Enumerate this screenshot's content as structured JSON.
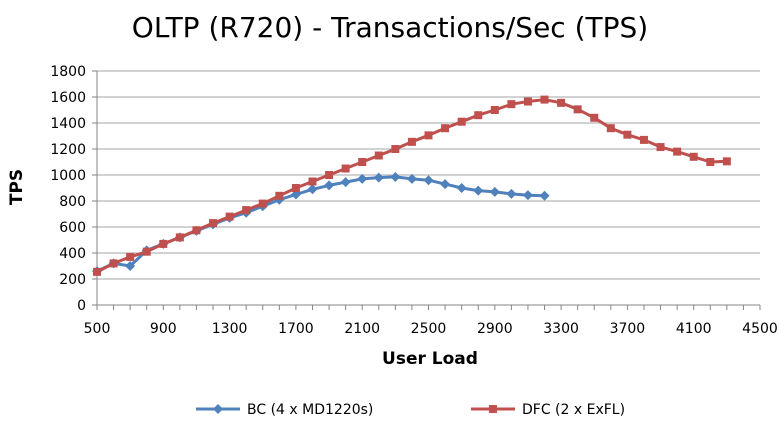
{
  "chart_data": {
    "type": "line",
    "title": "OLTP (R720) - Transactions/Sec (TPS)",
    "xlabel": "User Load",
    "ylabel": "TPS",
    "xlim": [
      500,
      4500
    ],
    "ylim": [
      0,
      1800
    ],
    "xticks": [
      "500",
      "900",
      "1300",
      "1700",
      "2100",
      "2500",
      "2900",
      "3300",
      "3700",
      "4100",
      "4500"
    ],
    "yticks": [
      "0",
      "200",
      "400",
      "600",
      "800",
      "1000",
      "1200",
      "1400",
      "1600",
      "1800"
    ],
    "grid": true,
    "legend": "bottom",
    "series": [
      {
        "name": "BC (4 x MD1220s)",
        "color": "#4F81BD",
        "marker": "diamond",
        "x": [
          500,
          600,
          700,
          800,
          900,
          1000,
          1100,
          1200,
          1300,
          1400,
          1500,
          1600,
          1700,
          1800,
          1900,
          2000,
          2100,
          2200,
          2300,
          2400,
          2500,
          2600,
          2700,
          2800,
          2900,
          3000,
          3100,
          3200
        ],
        "y": [
          260,
          320,
          300,
          420,
          470,
          520,
          570,
          620,
          670,
          710,
          760,
          810,
          850,
          890,
          920,
          945,
          970,
          980,
          985,
          970,
          960,
          930,
          900,
          880,
          870,
          855,
          845,
          840
        ]
      },
      {
        "name": "DFC (2 x ExFL)",
        "color": "#C0504D",
        "marker": "square",
        "x": [
          500,
          600,
          700,
          800,
          900,
          1000,
          1100,
          1200,
          1300,
          1400,
          1500,
          1600,
          1700,
          1800,
          1900,
          2000,
          2100,
          2200,
          2300,
          2400,
          2500,
          2600,
          2700,
          2800,
          2900,
          3000,
          3100,
          3200,
          3300,
          3400,
          3500,
          3600,
          3700,
          3800,
          3900,
          4000,
          4100,
          4200,
          4300
        ],
        "y": [
          255,
          320,
          370,
          410,
          470,
          520,
          575,
          630,
          680,
          730,
          780,
          840,
          900,
          950,
          1000,
          1050,
          1100,
          1150,
          1200,
          1255,
          1305,
          1360,
          1410,
          1460,
          1500,
          1545,
          1565,
          1580,
          1555,
          1505,
          1440,
          1360,
          1310,
          1270,
          1215,
          1180,
          1140,
          1100,
          1105
        ]
      }
    ]
  }
}
